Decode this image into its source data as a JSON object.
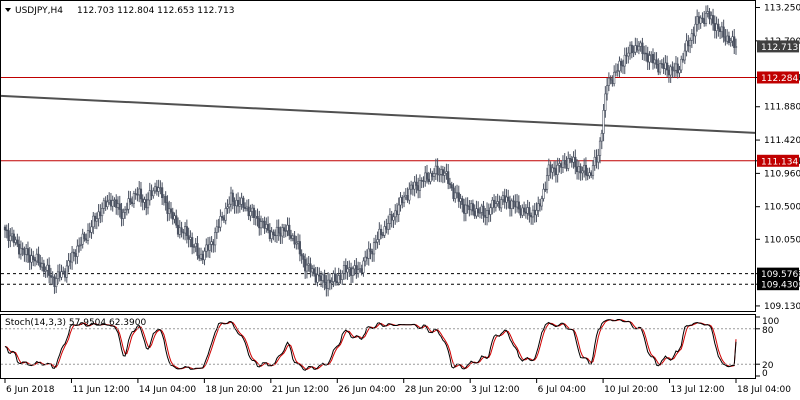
{
  "header": {
    "symbol": "USDJPY,H4",
    "ohlc": "112.703 112.804 112.653 112.713"
  },
  "stoch_label": "Stoch(14,3,3) 57.9504 62.3900",
  "colors": {
    "candle": "#4a5160",
    "resistance": "#c00000",
    "trendline": "#505050",
    "support": "#000000",
    "stoch_main": "#000000",
    "stoch_signal": "#d00000",
    "current_tag": "#404040"
  },
  "chart_data": {
    "type": "candlestick",
    "timeframe": "H4",
    "y_axis": {
      "ticks": [
        "113.250",
        "112.790",
        "112.284",
        "111.880",
        "111.420",
        "111.134",
        "110.960",
        "110.500",
        "110.050",
        "109.576",
        "109.430",
        "109.130"
      ],
      "range": [
        109.06,
        113.34
      ]
    },
    "x_axis": {
      "ticks": [
        "6 Jun 2018",
        "11 Jun 12:00",
        "14 Jun 04:00",
        "18 Jun 20:00",
        "21 Jun 12:00",
        "26 Jun 04:00",
        "28 Jun 20:00",
        "3 Jul 12:00",
        "6 Jul 04:00",
        "10 Jul 20:00",
        "13 Jul 12:00",
        "18 Jul 04:00"
      ]
    },
    "current_price": "112.713",
    "levels": [
      {
        "value": 112.284,
        "label": "112.284",
        "style": "resistance"
      },
      {
        "value": 111.134,
        "label": "111.134",
        "style": "resistance"
      },
      {
        "value": 109.576,
        "label": "109.576",
        "style": "support-dashed"
      },
      {
        "value": 109.43,
        "label": "109.430",
        "style": "support-dashed"
      }
    ],
    "trendline": {
      "from_value": 112.03,
      "to_value": 111.52
    },
    "close_path": [
      [
        0,
        110.18
      ],
      [
        10,
        109.88
      ],
      [
        20,
        109.72
      ],
      [
        28,
        109.48
      ],
      [
        34,
        109.62
      ],
      [
        40,
        109.9
      ],
      [
        46,
        110.1
      ],
      [
        54,
        110.45
      ],
      [
        60,
        110.6
      ],
      [
        67,
        110.4
      ],
      [
        74,
        110.7
      ],
      [
        80,
        110.55
      ],
      [
        86,
        110.8
      ],
      [
        92,
        110.5
      ],
      [
        98,
        110.2
      ],
      [
        104,
        110.1
      ],
      [
        110,
        109.8
      ],
      [
        116,
        109.95
      ],
      [
        122,
        110.3
      ],
      [
        128,
        110.6
      ],
      [
        136,
        110.5
      ],
      [
        144,
        110.3
      ],
      [
        152,
        110.1
      ],
      [
        158,
        110.2
      ],
      [
        164,
        110.05
      ],
      [
        170,
        109.7
      ],
      [
        176,
        109.55
      ],
      [
        182,
        109.45
      ],
      [
        188,
        109.5
      ],
      [
        194,
        109.65
      ],
      [
        200,
        109.6
      ],
      [
        206,
        109.85
      ],
      [
        212,
        110.1
      ],
      [
        218,
        110.3
      ],
      [
        224,
        110.55
      ],
      [
        230,
        110.75
      ],
      [
        236,
        110.85
      ],
      [
        242,
        110.95
      ],
      [
        248,
        111.0
      ],
      [
        254,
        110.7
      ],
      [
        260,
        110.5
      ],
      [
        266,
        110.45
      ],
      [
        272,
        110.4
      ],
      [
        278,
        110.55
      ],
      [
        284,
        110.6
      ],
      [
        290,
        110.5
      ],
      [
        296,
        110.4
      ],
      [
        302,
        110.45
      ],
      [
        308,
        111.0
      ],
      [
        314,
        111.05
      ],
      [
        320,
        111.15
      ],
      [
        326,
        111.0
      ],
      [
        331,
        110.95
      ],
      [
        336,
        111.2
      ],
      [
        341,
        112.2
      ],
      [
        346,
        112.35
      ],
      [
        352,
        112.6
      ],
      [
        358,
        112.72
      ],
      [
        364,
        112.58
      ],
      [
        370,
        112.45
      ],
      [
        376,
        112.4
      ],
      [
        381,
        112.38
      ],
      [
        386,
        112.7
      ],
      [
        392,
        113.05
      ],
      [
        398,
        113.15
      ],
      [
        404,
        112.95
      ],
      [
        410,
        112.8
      ],
      [
        414,
        112.713
      ]
    ],
    "stochastic": {
      "title": "Stoch(14,3,3)",
      "main": 57.9504,
      "signal": 62.39,
      "levels": [
        80,
        20
      ],
      "range": [
        0,
        100
      ]
    }
  }
}
